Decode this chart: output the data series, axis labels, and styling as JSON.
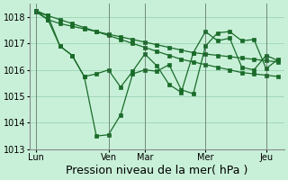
{
  "background_color": "#c8f0d8",
  "grid_color": "#a0d8b8",
  "line_color": "#1a6b2a",
  "marker_color": "#1a6b2a",
  "xlabel": "Pression niveau de la mer( hPa )",
  "ylim": [
    1013,
    1018.5
  ],
  "yticks": [
    1013,
    1014,
    1015,
    1016,
    1017,
    1018
  ],
  "xlabel_fontsize": 9,
  "tick_fontsize": 7,
  "day_labels": [
    "Lun",
    "Ven",
    "Mar",
    "Mer",
    "Jeu"
  ],
  "day_positions": [
    0,
    6,
    9,
    14,
    19
  ],
  "series1_x": [
    0,
    1,
    2,
    3,
    4,
    5,
    6,
    7,
    8,
    9,
    10,
    11,
    12,
    13,
    14,
    15,
    16,
    17,
    18,
    19,
    20
  ],
  "series1_y": [
    1018.2,
    1017.9,
    1017.75,
    1017.65,
    1017.55,
    1017.45,
    1017.35,
    1017.25,
    1017.15,
    1017.05,
    1016.95,
    1016.85,
    1016.75,
    1016.65,
    1016.6,
    1016.55,
    1016.5,
    1016.45,
    1016.4,
    1016.35,
    1016.3
  ],
  "series2_x": [
    0,
    1,
    2,
    3,
    4,
    5,
    6,
    7,
    8,
    9,
    10,
    11,
    12,
    13,
    14,
    15,
    16,
    17,
    18,
    19,
    20
  ],
  "series2_y": [
    1018.2,
    1018.05,
    1017.9,
    1017.75,
    1017.6,
    1017.45,
    1017.3,
    1017.15,
    1017.0,
    1016.85,
    1016.7,
    1016.55,
    1016.4,
    1016.3,
    1016.2,
    1016.1,
    1016.0,
    1015.9,
    1015.85,
    1015.8,
    1015.75
  ],
  "series3_x": [
    0,
    1,
    2,
    3,
    4,
    5,
    6,
    7,
    8,
    9,
    10,
    11,
    12,
    13,
    14,
    15,
    16,
    17,
    18,
    19,
    20
  ],
  "series3_y": [
    1018.25,
    1018.05,
    1016.9,
    1016.55,
    1015.75,
    1015.85,
    1016.0,
    1015.35,
    1015.95,
    1016.6,
    1016.15,
    1015.45,
    1015.15,
    1016.65,
    1017.45,
    1017.1,
    1017.2,
    1016.1,
    1016.0,
    1016.55,
    1016.35
  ],
  "series4_x": [
    0,
    1,
    2,
    3,
    4,
    5,
    6,
    7,
    8,
    9,
    10,
    11,
    12,
    13,
    14,
    15,
    16,
    17,
    18,
    19,
    20
  ],
  "series4_y": [
    1018.25,
    1017.9,
    1016.9,
    1016.55,
    1015.75,
    1013.5,
    1013.55,
    1014.3,
    1015.85,
    1016.0,
    1015.95,
    1016.2,
    1015.25,
    1015.1,
    1016.9,
    1017.4,
    1017.45,
    1017.1,
    1017.15,
    1016.05,
    1016.4
  ]
}
